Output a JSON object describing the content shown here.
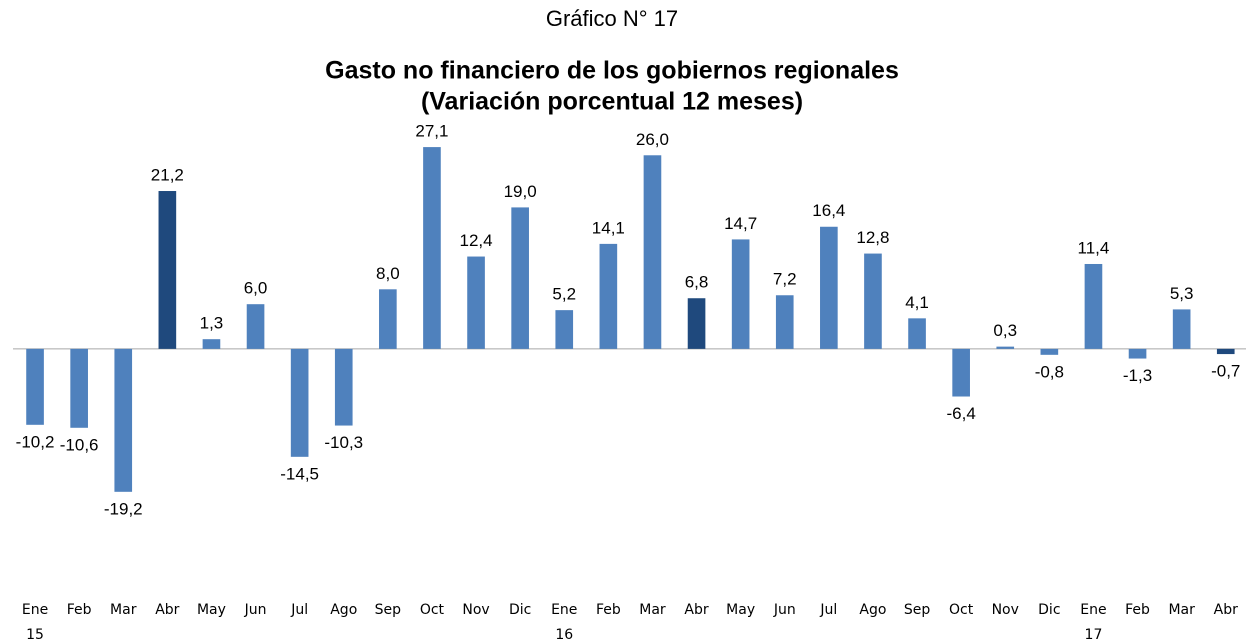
{
  "chart_data": {
    "type": "bar",
    "title": "Gráfico N° 17",
    "subtitle": [
      "Gasto no financiero de los gobiernos regionales",
      "(Variación porcentual 12 meses)"
    ],
    "categories": [
      "Ene 15",
      "Feb",
      "Mar",
      "Abr",
      "May",
      "Jun",
      "Jul",
      "Ago",
      "Sep",
      "Oct",
      "Nov",
      "Dic",
      "Ene 16",
      "Feb",
      "Mar",
      "Abr",
      "May",
      "Jun",
      "Jul",
      "Ago",
      "Sep",
      "Oct",
      "Nov",
      "Dic",
      "Ene 17",
      "Feb",
      "Mar",
      "Abr"
    ],
    "values": [
      -10.2,
      -10.6,
      -19.2,
      21.2,
      1.3,
      6.0,
      -14.5,
      -10.3,
      8.0,
      27.1,
      12.4,
      19.0,
      5.2,
      14.1,
      26.0,
      6.8,
      14.7,
      7.2,
      16.4,
      12.8,
      4.1,
      -6.4,
      0.3,
      -0.8,
      11.4,
      -1.3,
      5.3,
      -0.7
    ],
    "value_labels": [
      "-10,2",
      "-10,6",
      "-19,2",
      "21,2",
      "1,3",
      "6,0",
      "-14,5",
      "-10,3",
      "8,0",
      "27,1",
      "12,4",
      "19,0",
      "5,2",
      "14,1",
      "26,0",
      "6,8",
      "14,7",
      "7,2",
      "16,4",
      "12,8",
      "4,1",
      "-6,4",
      "0,3",
      "-0,8",
      "11,4",
      "-1,3",
      "5,3",
      "-0,7"
    ],
    "colors": [
      "#4f81bd",
      "#4f81bd",
      "#4f81bd",
      "#1f497d",
      "#4f81bd",
      "#4f81bd",
      "#4f81bd",
      "#4f81bd",
      "#4f81bd",
      "#4f81bd",
      "#4f81bd",
      "#4f81bd",
      "#4f81bd",
      "#4f81bd",
      "#4f81bd",
      "#1f497d",
      "#4f81bd",
      "#4f81bd",
      "#4f81bd",
      "#4f81bd",
      "#4f81bd",
      "#4f81bd",
      "#4f81bd",
      "#4f81bd",
      "#4f81bd",
      "#4f81bd",
      "#4f81bd",
      "#1f497d"
    ],
    "ylim": [
      -25,
      30
    ]
  }
}
